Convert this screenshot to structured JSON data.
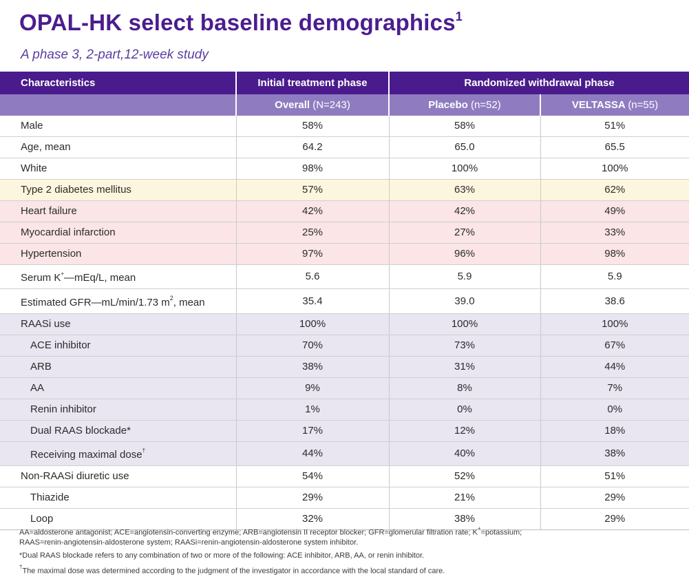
{
  "title": "OPAL-HK select baseline demographics",
  "title_sup": "1",
  "subtitle": "A phase 3, 2-part,12-week study",
  "header": {
    "characteristics": "Characteristics",
    "initial_phase": "Initial treatment phase",
    "randomized_phase": "Randomized withdrawal phase",
    "overall_label": "Overall",
    "overall_n": "(N=243)",
    "placebo_label": "Placebo",
    "placebo_n": "(n=52)",
    "veltassa_label": "VELTASSA",
    "veltassa_n": "(n=55)"
  },
  "rows": [
    {
      "label": "Male",
      "overall": "58%",
      "placebo": "58%",
      "veltassa": "51%"
    },
    {
      "label": "Age, mean",
      "overall": "64.2",
      "placebo": "65.0",
      "veltassa": "65.5"
    },
    {
      "label": "White",
      "overall": "98%",
      "placebo": "100%",
      "veltassa": "100%"
    },
    {
      "label": "Type 2 diabetes mellitus",
      "overall": "57%",
      "placebo": "63%",
      "veltassa": "62%"
    },
    {
      "label": "Heart failure",
      "overall": "42%",
      "placebo": "42%",
      "veltassa": "49%"
    },
    {
      "label": "Myocardial infarction",
      "overall": "25%",
      "placebo": "27%",
      "veltassa": "33%"
    },
    {
      "label": "Hypertension",
      "overall": "97%",
      "placebo": "96%",
      "veltassa": "98%"
    },
    {
      "label_pre": "Serum K",
      "label_sup": "+",
      "label_post": "—mEq/L, mean",
      "overall": "5.6",
      "placebo": "5.9",
      "veltassa": "5.9"
    },
    {
      "label_pre": "Estimated GFR—mL/min/1.73 m",
      "label_sup": "2",
      "label_post": ", mean",
      "overall": "35.4",
      "placebo": "39.0",
      "veltassa": "38.6"
    },
    {
      "label": "RAASi use",
      "overall": "100%",
      "placebo": "100%",
      "veltassa": "100%"
    },
    {
      "label": "ACE inhibitor",
      "overall": "70%",
      "placebo": "73%",
      "veltassa": "67%"
    },
    {
      "label": "ARB",
      "overall": "38%",
      "placebo": "31%",
      "veltassa": "44%"
    },
    {
      "label": "AA",
      "overall": "9%",
      "placebo": "8%",
      "veltassa": "7%"
    },
    {
      "label": "Renin inhibitor",
      "overall": "1%",
      "placebo": "0%",
      "veltassa": "0%"
    },
    {
      "label": "Dual RAAS blockade*",
      "overall": "17%",
      "placebo": "12%",
      "veltassa": "18%"
    },
    {
      "label_pre": "Receiving maximal dose",
      "label_sup": "†",
      "label_post": "",
      "overall": "44%",
      "placebo": "40%",
      "veltassa": "38%"
    },
    {
      "label": "Non-RAASi diuretic use",
      "overall": "54%",
      "placebo": "52%",
      "veltassa": "51%"
    },
    {
      "label": "Thiazide",
      "overall": "29%",
      "placebo": "21%",
      "veltassa": "29%"
    },
    {
      "label": "Loop",
      "overall": "32%",
      "placebo": "38%",
      "veltassa": "29%"
    }
  ],
  "footnotes": {
    "abbr_line1_pre": "AA=aldosterone antagonist; ACE=angiotensin-converting enzyme; ARB=angiotensin II receptor blocker; GFR=glomerular filtration rate; K",
    "abbr_line1_sup": "+",
    "abbr_line1_post": "=potassium;",
    "abbr_line2": "RAAS=renin-angiotensin-aldosterone system; RAASi=renin-angiotensin-aldosterone system inhibitor.",
    "dual": "*Dual RAAS blockade refers to any combination of two or more of the following: ACE inhibitor, ARB, AA, or renin inhibitor.",
    "maximal_sup": "†",
    "maximal": "The maximal dose was determined according to the judgment of the investigator in accordance with the local standard of care."
  },
  "colors": {
    "title": "#4b1d8f",
    "header_dark": "#4a1b8c",
    "header_light": "#8f7cc0",
    "row_yellow": "#fdf6de",
    "row_pink": "#fbe5e6",
    "row_purple": "#e9e5f1"
  }
}
